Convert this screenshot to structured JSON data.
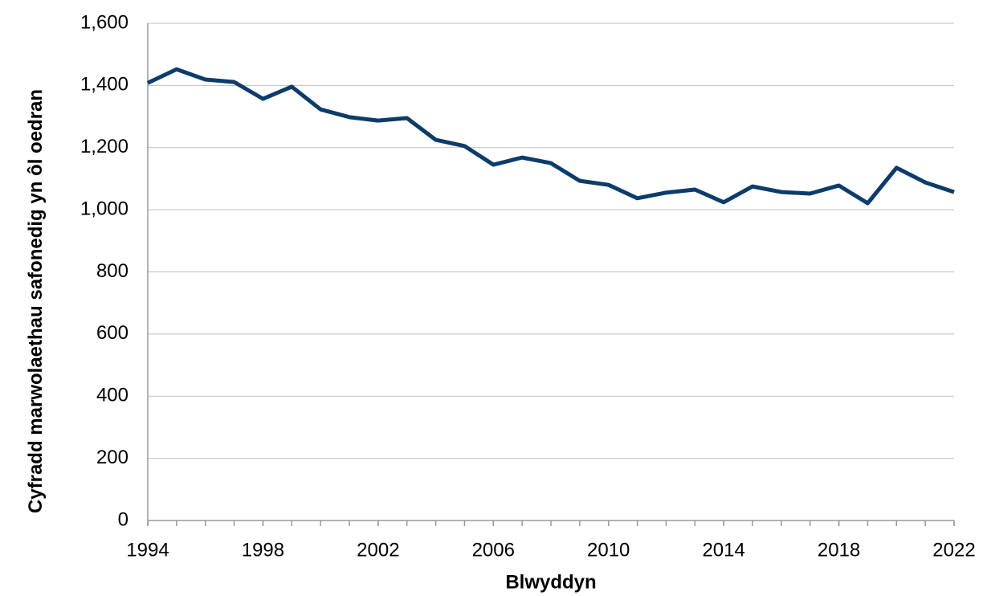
{
  "chart_data": {
    "type": "line",
    "xlabel": "Blwyddyn",
    "ylabel": "Cyfradd marwolaethau safonedig yn ôl oedran",
    "x": [
      1994,
      1995,
      1996,
      1997,
      1998,
      1999,
      2000,
      2001,
      2002,
      2003,
      2004,
      2005,
      2006,
      2007,
      2008,
      2009,
      2010,
      2011,
      2012,
      2013,
      2014,
      2015,
      2016,
      2017,
      2018,
      2019,
      2020,
      2021,
      2022
    ],
    "series": [
      {
        "color": "#0b3c6b",
        "values": [
          1408,
          1452,
          1419,
          1411,
          1357,
          1396,
          1323,
          1298,
          1287,
          1295,
          1225,
          1205,
          1145,
          1168,
          1150,
          1093,
          1080,
          1037,
          1055,
          1065,
          1024,
          1075,
          1057,
          1052,
          1078,
          1021,
          1135,
          1088,
          1057
        ]
      }
    ],
    "xlim": [
      1994,
      2022
    ],
    "xticks": [
      1994,
      1998,
      2002,
      2006,
      2010,
      2014,
      2018,
      2022
    ],
    "ylim": [
      0,
      1600
    ],
    "yticks": [
      0,
      200,
      400,
      600,
      800,
      {
        "value": 1000,
        "label": "1,000"
      },
      {
        "value": 1200,
        "label": "1,200"
      },
      {
        "value": 1400,
        "label": "1,400"
      },
      {
        "value": 1600,
        "label": "1,600"
      }
    ],
    "grid": true
  }
}
